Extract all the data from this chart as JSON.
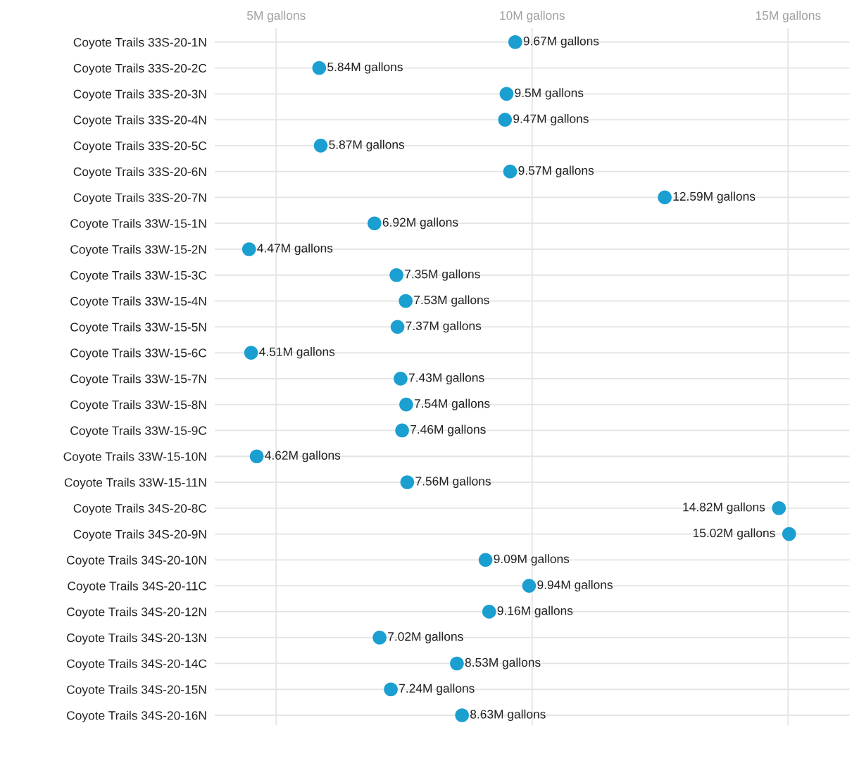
{
  "chart_data": {
    "type": "scatter",
    "orientation": "horizontal",
    "categories": [
      "Coyote Trails 33S-20-1N",
      "Coyote Trails 33S-20-2C",
      "Coyote Trails 33S-20-3N",
      "Coyote Trails 33S-20-4N",
      "Coyote Trails 33S-20-5C",
      "Coyote Trails 33S-20-6N",
      "Coyote Trails 33S-20-7N",
      "Coyote Trails 33W-15-1N",
      "Coyote Trails 33W-15-2N",
      "Coyote Trails 33W-15-3C",
      "Coyote Trails 33W-15-4N",
      "Coyote Trails 33W-15-5N",
      "Coyote Trails 33W-15-6C",
      "Coyote Trails 33W-15-7N",
      "Coyote Trails 33W-15-8N",
      "Coyote Trails 33W-15-9C",
      "Coyote Trails 33W-15-10N",
      "Coyote Trails 33W-15-11N",
      "Coyote Trails 34S-20-8C",
      "Coyote Trails 34S-20-9N",
      "Coyote Trails 34S-20-10N",
      "Coyote Trails 34S-20-11C",
      "Coyote Trails 34S-20-12N",
      "Coyote Trails 34S-20-13N",
      "Coyote Trails 34S-20-14C",
      "Coyote Trails 34S-20-15N",
      "Coyote Trails 34S-20-16N"
    ],
    "values": [
      9.67,
      5.84,
      9.5,
      9.47,
      5.87,
      9.57,
      12.59,
      6.92,
      4.47,
      7.35,
      7.53,
      7.37,
      4.51,
      7.43,
      7.54,
      7.46,
      4.62,
      7.56,
      14.82,
      15.02,
      9.09,
      9.94,
      9.16,
      7.02,
      8.53,
      7.24,
      8.63
    ],
    "value_labels": [
      "9.67M gallons",
      "5.84M gallons",
      "9.5M gallons",
      "9.47M gallons",
      "5.87M gallons",
      "9.57M gallons",
      "12.59M gallons",
      "6.92M gallons",
      "4.47M gallons",
      "7.35M gallons",
      "7.53M gallons",
      "7.37M gallons",
      "4.51M gallons",
      "7.43M gallons",
      "7.54M gallons",
      "7.46M gallons",
      "4.62M gallons",
      "7.56M gallons",
      "14.82M gallons",
      "15.02M gallons",
      "9.09M gallons",
      "9.94M gallons",
      "9.16M gallons",
      "7.02M gallons",
      "8.53M gallons",
      "7.24M gallons",
      "8.63M gallons"
    ],
    "color": "#1a9fd0",
    "xlim": [
      3.8,
      16.2
    ],
    "xticks": [
      {
        "value": 5,
        "label": "5M gallons"
      },
      {
        "value": 10,
        "label": "10M gallons"
      },
      {
        "value": 15,
        "label": "15M gallons"
      }
    ],
    "grid": true,
    "marker": "circle"
  }
}
